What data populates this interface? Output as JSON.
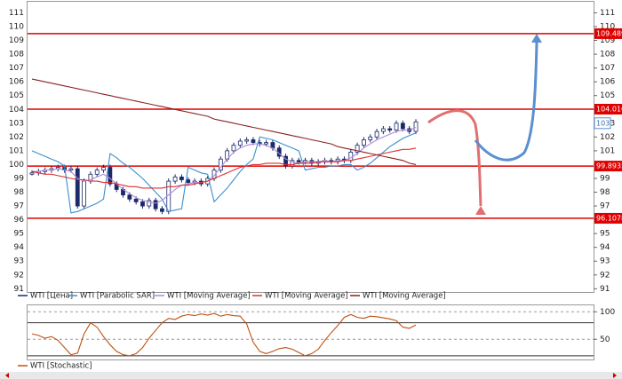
{
  "chart_data": [
    {
      "type": "candlestick",
      "ylim": [
        90.7,
        111.8
      ],
      "yticks": [
        91,
        92,
        93,
        94,
        95,
        96,
        97,
        98,
        99,
        100,
        101,
        102,
        103,
        104,
        105,
        106,
        107,
        108,
        109,
        110,
        111
      ],
      "levels": {
        "color": "#e00000",
        "values": [
          109.489,
          104.016,
          99.8935,
          96.1078
        ]
      },
      "last_price": 103,
      "series": [
        {
          "name": "WTI [Цена]",
          "color": "#1a2a6a",
          "values": [
            99.4,
            99.5,
            99.6,
            99.7,
            99.8,
            99.6,
            99.7,
            97.0,
            98.8,
            99.3,
            99.6,
            99.8,
            98.6,
            98.2,
            97.8,
            97.5,
            97.3,
            97.0,
            97.4,
            96.8,
            96.6,
            98.8,
            99.1,
            98.9,
            98.7,
            98.8,
            98.6,
            99.0,
            99.6,
            100.4,
            101.0,
            101.4,
            101.7,
            101.8,
            101.6,
            101.5,
            101.6,
            101.2,
            100.6,
            99.9,
            100.3,
            100.2,
            100.3,
            100.1,
            100.2,
            100.3,
            100.2,
            100.4,
            100.3,
            100.9,
            101.4,
            101.8,
            102.0,
            102.4,
            102.6,
            102.5,
            103.0,
            102.6,
            102.4,
            103.1
          ]
        },
        {
          "name": "WTI [Parabolic SAR]",
          "color": "#3a8fd0",
          "values": [
            101.0,
            100.8,
            100.6,
            100.4,
            100.2,
            99.9,
            96.5,
            96.6,
            96.8,
            97.0,
            97.2,
            97.5,
            100.8,
            100.5,
            100.1,
            99.8,
            99.4,
            99.0,
            98.5,
            98.0,
            97.5,
            96.6,
            96.7,
            96.8,
            99.8,
            99.6,
            99.4,
            99.3,
            97.3,
            97.8,
            98.3,
            98.9,
            99.5,
            100.0,
            100.4,
            102.0,
            101.9,
            101.8,
            101.6,
            101.4,
            101.2,
            101.0,
            99.6,
            99.7,
            99.8,
            99.8,
            99.9,
            99.9,
            100.0,
            100.0,
            99.6,
            99.8,
            100.1,
            100.5,
            100.9,
            101.3,
            101.6,
            101.9,
            102.1,
            102.3
          ]
        },
        {
          "name": "WTI [Moving Average]",
          "color": "#b08ad8",
          "values": [
            99.5,
            99.5,
            99.6,
            99.6,
            99.7,
            99.6,
            99.5,
            99.0,
            98.8,
            98.9,
            99.1,
            99.3,
            99.0,
            98.6,
            98.2,
            97.9,
            97.6,
            97.4,
            97.3,
            97.2,
            97.4,
            97.8,
            98.2,
            98.5,
            98.6,
            98.7,
            98.7,
            98.8,
            99.2,
            99.8,
            100.4,
            100.9,
            101.2,
            101.4,
            101.5,
            101.5,
            101.4,
            101.2,
            100.8,
            100.4,
            100.2,
            100.1,
            100.2,
            100.2,
            100.2,
            100.3,
            100.2,
            100.3,
            100.3,
            100.5,
            100.8,
            101.2,
            101.5,
            101.8,
            102.0,
            102.2,
            102.4,
            102.5,
            102.5,
            102.7
          ]
        },
        {
          "name": "WTI [Moving Average]",
          "color": "#e03030",
          "values": [
            99.5,
            99.4,
            99.3,
            99.3,
            99.2,
            99.1,
            99.0,
            98.9,
            98.9,
            98.8,
            98.8,
            98.7,
            98.7,
            98.6,
            98.5,
            98.4,
            98.4,
            98.3,
            98.3,
            98.3,
            98.3,
            98.4,
            98.4,
            98.5,
            98.5,
            98.6,
            98.7,
            98.8,
            99.0,
            99.2,
            99.4,
            99.6,
            99.8,
            99.9,
            100.0,
            100.0,
            100.1,
            100.1,
            100.1,
            100.0,
            100.0,
            100.1,
            100.1,
            100.1,
            100.2,
            100.2,
            100.2,
            100.2,
            100.3,
            100.3,
            100.4,
            100.5,
            100.6,
            100.7,
            100.8,
            100.9,
            101.0,
            101.1,
            101.1,
            101.2
          ]
        },
        {
          "name": "WTI [Moving Average]",
          "color": "#8b2020",
          "values": [
            106.2,
            106.1,
            106.0,
            105.9,
            105.8,
            105.7,
            105.6,
            105.5,
            105.4,
            105.3,
            105.2,
            105.1,
            105.0,
            104.9,
            104.8,
            104.7,
            104.6,
            104.5,
            104.4,
            104.3,
            104.2,
            104.1,
            104.0,
            103.9,
            103.8,
            103.7,
            103.6,
            103.5,
            103.3,
            103.2,
            103.1,
            103.0,
            102.9,
            102.8,
            102.7,
            102.6,
            102.5,
            102.4,
            102.3,
            102.2,
            102.1,
            102.0,
            101.9,
            101.8,
            101.7,
            101.6,
            101.5,
            101.3,
            101.2,
            101.1,
            101.0,
            100.9,
            100.8,
            100.7,
            100.6,
            100.5,
            100.4,
            100.3,
            100.1,
            100.0
          ]
        }
      ]
    },
    {
      "type": "line",
      "ylim": [
        11.7,
        111.7
      ],
      "yticks": [
        50,
        100
      ],
      "levels": {
        "color": "#333333",
        "values": [
          20,
          80
        ]
      },
      "series": [
        {
          "name": "WTI [Stochastic]",
          "color": "#c05010",
          "values": [
            60,
            57,
            52,
            55,
            48,
            35,
            22,
            25,
            60,
            80,
            72,
            55,
            40,
            28,
            22,
            20,
            24,
            35,
            52,
            66,
            80,
            88,
            86,
            92,
            95,
            93,
            96,
            94,
            97,
            92,
            95,
            93,
            92,
            78,
            45,
            28,
            24,
            28,
            33,
            35,
            32,
            26,
            20,
            24,
            32,
            48,
            62,
            75,
            90,
            95,
            90,
            88,
            92,
            91,
            89,
            87,
            84,
            72,
            70,
            76
          ]
        }
      ]
    }
  ]
}
